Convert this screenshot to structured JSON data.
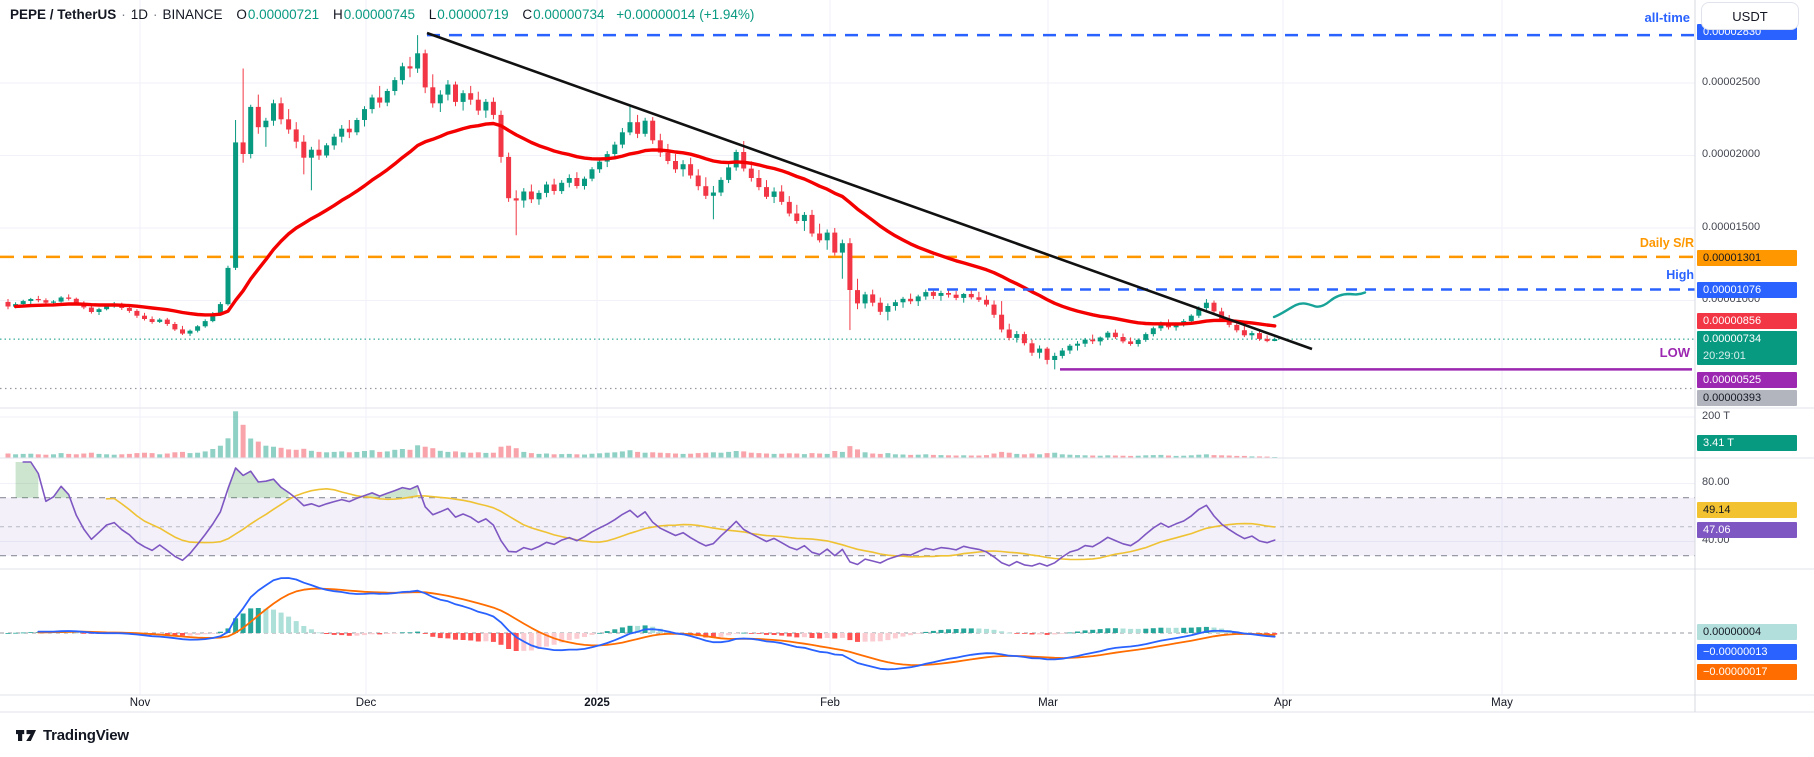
{
  "header": {
    "symbol": "PEPE / TetherUS",
    "separator": "·",
    "timeframe": "1D",
    "exchange": "BINANCE",
    "o_label": "O",
    "o": "0.00000721",
    "h_label": "H",
    "h": "0.00000745",
    "l_label": "L",
    "l": "0.00000719",
    "c_label": "C",
    "c": "0.00000734",
    "change": "+0.00000014 (+1.94%)"
  },
  "currency_button": "USDT",
  "price_scale": {
    "ticks": [
      "0.00002500",
      "0.00002000",
      "0.00001500",
      "0.00001000"
    ],
    "volume_tick": "200 T",
    "rsi_ticks": [
      "80.00",
      "40.00"
    ]
  },
  "badges": {
    "all_time_high": "0.00002830",
    "daily_sr": "0.00001301",
    "high": "0.00001076",
    "ma": "0.00000856",
    "last_price": "0.00000734",
    "countdown": "20:29:01",
    "low": "0.00000525",
    "support": "0.00000393",
    "volume": "3.41 T",
    "rsi_ma": "49.14",
    "rsi": "47.06",
    "macd_hist": "0.00000004",
    "macd": "−0.00000013",
    "macd_signal": "−0.00000017"
  },
  "annotations": {
    "all_time": "all-time",
    "daily_sr": "Daily S/R",
    "high": "High",
    "low": "LOW"
  },
  "time_axis": [
    "Nov",
    "Dec",
    "2025",
    "Feb",
    "Mar",
    "Apr",
    "May"
  ],
  "footer": {
    "brand": "TradingView"
  },
  "colors": {
    "up": "#089981",
    "down": "#F23645",
    "ma_line": "#F40000",
    "trendline": "#111111",
    "daily_sr": "#FF9800",
    "blue": "#2962FF",
    "low_line": "#9C27B0",
    "support_gray": "#9598A1",
    "rsi_line": "#7E57C2",
    "rsi_ma_line": "#EFC234",
    "macd_line": "#2962FF",
    "signal_line": "#FF6D00",
    "last_teal": "#089981"
  },
  "chart_data": {
    "type": "candlestick",
    "title": "PEPE / TetherUS 1D BINANCE",
    "price_unit": "1e-8 USDT (value 734 = 0.00000734)",
    "volume_unit": "T (trillions of PEPE)",
    "x_axis_months": [
      "Nov",
      "Dec",
      "2025",
      "Feb",
      "Mar",
      "Apr",
      "May"
    ],
    "ylim_price": [
      3e-06,
      2.92e-05
    ],
    "levels": {
      "all_time_high": 2830,
      "daily_sr": 1301,
      "high": 1076,
      "ma_current": 856,
      "last_close": 734,
      "low_line": 525,
      "support": 393
    },
    "indicator_current_values": {
      "volume": "3.41 T",
      "rsi": 47.06,
      "rsi_ma": 49.14,
      "macd": -1.3e-07,
      "macd_signal": -1.7e-07,
      "macd_histogram": 4e-08
    },
    "overlays": [
      "EMA red line",
      "descending black trendline from ATH",
      "all-time dashed blue line",
      "Daily S/R dashed orange line",
      "High dashed blue line",
      "LOW solid purple line",
      "dotted support 0.00000393",
      "teal projection squiggle toward High"
    ],
    "candles_format": [
      "open",
      "high",
      "low",
      "close",
      "volume_T"
    ],
    "candles": [
      [
        990,
        1010,
        940,
        958,
        22
      ],
      [
        958,
        988,
        946,
        975,
        18
      ],
      [
        975,
        1005,
        962,
        996,
        20
      ],
      [
        996,
        1018,
        975,
        1010,
        21
      ],
      [
        1010,
        1032,
        988,
        1002,
        18
      ],
      [
        1002,
        1015,
        972,
        985,
        16
      ],
      [
        985,
        1002,
        960,
        993,
        18
      ],
      [
        993,
        1030,
        985,
        1021,
        24
      ],
      [
        1021,
        1042,
        1000,
        1012,
        20
      ],
      [
        1012,
        1020,
        970,
        982,
        18
      ],
      [
        982,
        995,
        940,
        952,
        22
      ],
      [
        952,
        968,
        910,
        921,
        26
      ],
      [
        921,
        950,
        900,
        940,
        20
      ],
      [
        940,
        975,
        932,
        964,
        18
      ],
      [
        964,
        990,
        950,
        973,
        16
      ],
      [
        973,
        985,
        935,
        948,
        18
      ],
      [
        948,
        962,
        915,
        928,
        20
      ],
      [
        928,
        940,
        880,
        895,
        24
      ],
      [
        895,
        915,
        862,
        872,
        26
      ],
      [
        872,
        890,
        840,
        852,
        24
      ],
      [
        852,
        878,
        845,
        868,
        18
      ],
      [
        868,
        880,
        825,
        838,
        22
      ],
      [
        838,
        852,
        790,
        801,
        28
      ],
      [
        801,
        825,
        762,
        772,
        30
      ],
      [
        772,
        800,
        755,
        792,
        24
      ],
      [
        792,
        830,
        780,
        822,
        26
      ],
      [
        822,
        870,
        812,
        858,
        32
      ],
      [
        858,
        920,
        850,
        905,
        44
      ],
      [
        905,
        990,
        898,
        975,
        60
      ],
      [
        975,
        1240,
        965,
        1225,
        96
      ],
      [
        1225,
        2245,
        1210,
        2090,
        228
      ],
      [
        2090,
        2600,
        1950,
        2010,
        162
      ],
      [
        2010,
        2350,
        1980,
        2335,
        95
      ],
      [
        2335,
        2420,
        2150,
        2195,
        80
      ],
      [
        2195,
        2260,
        2060,
        2240,
        60
      ],
      [
        2240,
        2385,
        2205,
        2360,
        55
      ],
      [
        2360,
        2400,
        2215,
        2250,
        50
      ],
      [
        2250,
        2320,
        2150,
        2180,
        42
      ],
      [
        2180,
        2230,
        2050,
        2095,
        40
      ],
      [
        2095,
        2140,
        1870,
        1985,
        45
      ],
      [
        1985,
        2060,
        1760,
        2040,
        35
      ],
      [
        2040,
        2110,
        1970,
        2000,
        30
      ],
      [
        2000,
        2085,
        1985,
        2070,
        28
      ],
      [
        2070,
        2150,
        2040,
        2130,
        30
      ],
      [
        2130,
        2210,
        2090,
        2185,
        32
      ],
      [
        2185,
        2245,
        2120,
        2160,
        28
      ],
      [
        2160,
        2260,
        2140,
        2245,
        30
      ],
      [
        2245,
        2340,
        2200,
        2320,
        34
      ],
      [
        2320,
        2420,
        2290,
        2400,
        38
      ],
      [
        2400,
        2480,
        2330,
        2365,
        30
      ],
      [
        2365,
        2460,
        2340,
        2445,
        32
      ],
      [
        2445,
        2540,
        2415,
        2520,
        40
      ],
      [
        2520,
        2640,
        2490,
        2615,
        44
      ],
      [
        2615,
        2680,
        2540,
        2600,
        40
      ],
      [
        2600,
        2830,
        2570,
        2705,
        62
      ],
      [
        2705,
        2730,
        2430,
        2470,
        55
      ],
      [
        2470,
        2560,
        2330,
        2360,
        48
      ],
      [
        2360,
        2450,
        2300,
        2420,
        35
      ],
      [
        2420,
        2520,
        2380,
        2490,
        30
      ],
      [
        2490,
        2510,
        2340,
        2370,
        32
      ],
      [
        2370,
        2450,
        2310,
        2430,
        28
      ],
      [
        2430,
        2480,
        2350,
        2385,
        26
      ],
      [
        2385,
        2440,
        2280,
        2310,
        28
      ],
      [
        2310,
        2390,
        2260,
        2370,
        25
      ],
      [
        2370,
        2400,
        2250,
        2280,
        26
      ],
      [
        2280,
        2310,
        1950,
        1990,
        55
      ],
      [
        1990,
        2020,
        1680,
        1705,
        60
      ],
      [
        1705,
        1760,
        1450,
        1690,
        48
      ],
      [
        1690,
        1775,
        1640,
        1752,
        30
      ],
      [
        1752,
        1800,
        1672,
        1698,
        24
      ],
      [
        1698,
        1760,
        1660,
        1742,
        20
      ],
      [
        1742,
        1820,
        1712,
        1800,
        22
      ],
      [
        1800,
        1840,
        1730,
        1755,
        18
      ],
      [
        1755,
        1830,
        1735,
        1812,
        19
      ],
      [
        1812,
        1870,
        1780,
        1845,
        20
      ],
      [
        1845,
        1885,
        1772,
        1790,
        18
      ],
      [
        1790,
        1855,
        1765,
        1840,
        17
      ],
      [
        1840,
        1920,
        1822,
        1905,
        21
      ],
      [
        1905,
        1975,
        1880,
        1958,
        23
      ],
      [
        1958,
        2030,
        1920,
        2010,
        26
      ],
      [
        2010,
        2095,
        1985,
        2075,
        28
      ],
      [
        2075,
        2190,
        2050,
        2160,
        32
      ],
      [
        2160,
        2350,
        2140,
        2230,
        38
      ],
      [
        2230,
        2280,
        2120,
        2150,
        30
      ],
      [
        2150,
        2260,
        2130,
        2240,
        26
      ],
      [
        2240,
        2265,
        2080,
        2105,
        28
      ],
      [
        2105,
        2150,
        1990,
        2020,
        26
      ],
      [
        2020,
        2080,
        1940,
        1962,
        24
      ],
      [
        1962,
        2010,
        1880,
        1905,
        22
      ],
      [
        1905,
        1968,
        1855,
        1940,
        20
      ],
      [
        1940,
        1985,
        1840,
        1862,
        21
      ],
      [
        1862,
        1905,
        1760,
        1788,
        24
      ],
      [
        1788,
        1850,
        1700,
        1722,
        26
      ],
      [
        1722,
        1790,
        1560,
        1745,
        28
      ],
      [
        1745,
        1850,
        1720,
        1832,
        26
      ],
      [
        1832,
        1940,
        1810,
        1918,
        30
      ],
      [
        1918,
        2040,
        1895,
        2024,
        34
      ],
      [
        2024,
        2100,
        1890,
        1910,
        32
      ],
      [
        1910,
        1960,
        1820,
        1845,
        26
      ],
      [
        1845,
        1900,
        1760,
        1782,
        24
      ],
      [
        1782,
        1830,
        1700,
        1715,
        22
      ],
      [
        1715,
        1780,
        1672,
        1752,
        20
      ],
      [
        1752,
        1795,
        1660,
        1680,
        21
      ],
      [
        1680,
        1720,
        1580,
        1600,
        23
      ],
      [
        1600,
        1660,
        1530,
        1548,
        22
      ],
      [
        1548,
        1610,
        1480,
        1590,
        19
      ],
      [
        1590,
        1625,
        1440,
        1462,
        24
      ],
      [
        1462,
        1530,
        1400,
        1415,
        22
      ],
      [
        1415,
        1490,
        1350,
        1468,
        20
      ],
      [
        1468,
        1500,
        1310,
        1330,
        34
      ],
      [
        1330,
        1420,
        1150,
        1395,
        30
      ],
      [
        1395,
        1430,
        796,
        1072,
        58
      ],
      [
        1072,
        1150,
        940,
        980,
        42
      ],
      [
        980,
        1060,
        945,
        1042,
        28
      ],
      [
        1042,
        1075,
        960,
        985,
        22
      ],
      [
        985,
        1020,
        900,
        922,
        20
      ],
      [
        922,
        980,
        863,
        962,
        24
      ],
      [
        962,
        1005,
        930,
        988,
        18
      ],
      [
        988,
        1025,
        950,
        1012,
        17
      ],
      [
        1012,
        1048,
        975,
        995,
        15
      ],
      [
        995,
        1040,
        962,
        1028,
        16
      ],
      [
        1028,
        1076,
        1005,
        1058,
        18
      ],
      [
        1058,
        1072,
        1010,
        1032,
        15
      ],
      [
        1032,
        1068,
        998,
        1052,
        14
      ],
      [
        1052,
        1076,
        1020,
        1040,
        13
      ],
      [
        1040,
        1065,
        1002,
        1018,
        12
      ],
      [
        1018,
        1052,
        985,
        1045,
        13
      ],
      [
        1045,
        1070,
        1008,
        1022,
        12
      ],
      [
        1022,
        1060,
        990,
        1005,
        12
      ],
      [
        1005,
        1035,
        958,
        972,
        14
      ],
      [
        972,
        1000,
        880,
        902,
        22
      ],
      [
        902,
        996,
        780,
        800,
        30
      ],
      [
        800,
        840,
        725,
        742,
        26
      ],
      [
        742,
        790,
        710,
        768,
        20
      ],
      [
        768,
        785,
        690,
        705,
        18
      ],
      [
        705,
        730,
        618,
        640,
        22
      ],
      [
        640,
        690,
        600,
        668,
        18
      ],
      [
        668,
        680,
        560,
        590,
        24
      ],
      [
        590,
        640,
        525,
        618,
        26
      ],
      [
        618,
        672,
        600,
        655,
        18
      ],
      [
        655,
        700,
        632,
        688,
        16
      ],
      [
        688,
        720,
        655,
        702,
        14
      ],
      [
        702,
        742,
        680,
        730,
        13
      ],
      [
        730,
        765,
        700,
        718,
        12
      ],
      [
        718,
        752,
        690,
        745,
        11
      ],
      [
        745,
        790,
        728,
        778,
        13
      ],
      [
        778,
        800,
        735,
        748,
        12
      ],
      [
        748,
        772,
        705,
        718,
        11
      ],
      [
        718,
        745,
        688,
        700,
        10
      ],
      [
        700,
        738,
        682,
        728,
        11
      ],
      [
        728,
        780,
        715,
        768,
        13
      ],
      [
        768,
        820,
        752,
        808,
        14
      ],
      [
        808,
        855,
        790,
        842,
        15
      ],
      [
        842,
        870,
        800,
        815,
        12
      ],
      [
        815,
        848,
        792,
        838,
        10
      ],
      [
        838,
        872,
        820,
        858,
        11
      ],
      [
        858,
        905,
        842,
        895,
        13
      ],
      [
        895,
        960,
        880,
        948,
        16
      ],
      [
        948,
        1010,
        930,
        985,
        18
      ],
      [
        985,
        1000,
        905,
        925,
        14
      ],
      [
        925,
        950,
        855,
        872,
        13
      ],
      [
        872,
        900,
        815,
        832,
        12
      ],
      [
        832,
        860,
        780,
        795,
        10
      ],
      [
        795,
        825,
        748,
        760,
        10
      ],
      [
        760,
        790,
        735,
        775,
        8
      ],
      [
        775,
        788,
        722,
        735,
        8
      ],
      [
        735,
        760,
        712,
        720,
        7
      ],
      [
        721,
        745,
        719,
        734,
        3.41
      ]
    ]
  }
}
